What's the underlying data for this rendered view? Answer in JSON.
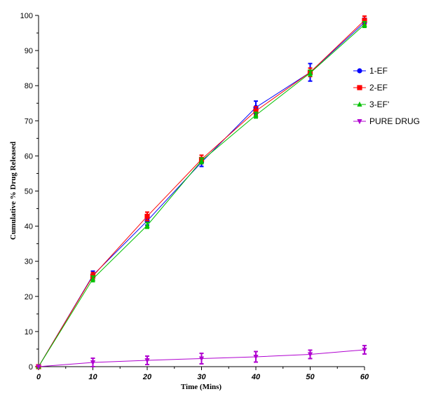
{
  "chart_data": {
    "type": "line",
    "title": "",
    "xlabel": "Time (Mins)",
    "ylabel": "Cumulative % Drug Released",
    "x": [
      0,
      10,
      20,
      30,
      40,
      50,
      60
    ],
    "xlim": [
      0,
      60
    ],
    "ylim": [
      0,
      100
    ],
    "x_ticks": [
      0,
      10,
      20,
      30,
      40,
      50,
      60
    ],
    "y_ticks": [
      0,
      10,
      20,
      30,
      40,
      50,
      60,
      70,
      80,
      90,
      100
    ],
    "grid": false,
    "legend_position": "right",
    "series": [
      {
        "name": "1-EF",
        "color": "#0000ff",
        "marker": "circle",
        "values": [
          0,
          26.0,
          41.5,
          58.2,
          73.8,
          83.8,
          98.0
        ],
        "errors": [
          0,
          1.2,
          1.2,
          1.2,
          1.8,
          2.5,
          1.2
        ]
      },
      {
        "name": "2-EF",
        "color": "#ff0000",
        "marker": "square",
        "values": [
          0,
          25.8,
          42.8,
          59.0,
          72.8,
          83.8,
          98.6
        ],
        "errors": [
          0,
          1.0,
          1.2,
          1.2,
          1.2,
          1.2,
          1.2
        ]
      },
      {
        "name": "3-EF'",
        "color": "#00c000",
        "marker": "triangle-up",
        "values": [
          0,
          25.0,
          40.2,
          58.6,
          71.6,
          83.6,
          97.4
        ],
        "errors": [
          0,
          0.8,
          0.8,
          0.8,
          0.8,
          0.8,
          0.8
        ]
      },
      {
        "name": "PURE DRUG",
        "color": "#b000d0",
        "marker": "triangle-down",
        "values": [
          0,
          1.2,
          1.8,
          2.3,
          2.8,
          3.5,
          4.8
        ],
        "errors": [
          0,
          1.2,
          1.2,
          1.5,
          1.5,
          1.2,
          1.2
        ]
      }
    ]
  }
}
